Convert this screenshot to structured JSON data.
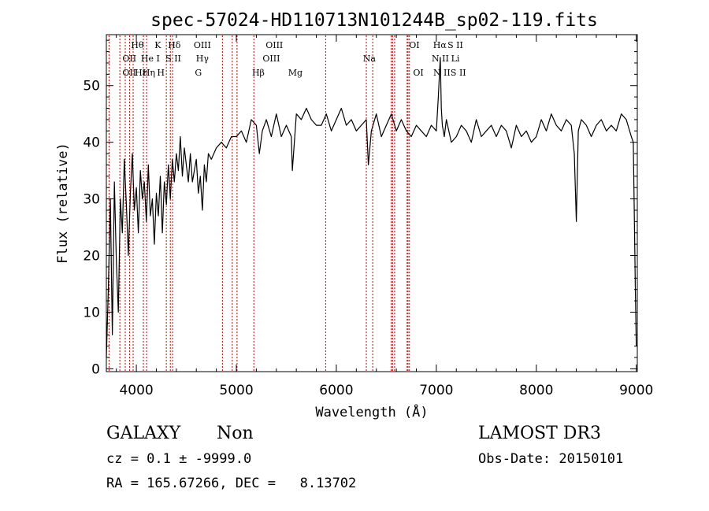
{
  "chart_data": {
    "type": "line",
    "title": "spec-57024-HD110713N101244B_sp02-119.fits",
    "xlabel": "Wavelength (Å)",
    "ylabel": "Flux (relative)",
    "xlim": [
      3700,
      9010
    ],
    "ylim": [
      -0.5,
      59
    ],
    "xticks": [
      4000,
      5000,
      6000,
      7000,
      8000,
      9000
    ],
    "xtick_labels": [
      "4000",
      "5000",
      "6000",
      "7000",
      "8000",
      "9000"
    ],
    "yticks": [
      0,
      10,
      20,
      30,
      40,
      50
    ],
    "ytick_labels": [
      "0",
      "10",
      "20",
      "30",
      "40",
      "50"
    ],
    "grid": false,
    "line_color": "#000000",
    "marker_color": "#cc0000",
    "series": [
      {
        "name": "flux",
        "x": [
          3700,
          3720,
          3740,
          3760,
          3780,
          3800,
          3820,
          3840,
          3860,
          3880,
          3900,
          3920,
          3940,
          3960,
          3980,
          4000,
          4020,
          4040,
          4060,
          4080,
          4100,
          4120,
          4140,
          4160,
          4180,
          4200,
          4220,
          4240,
          4260,
          4280,
          4300,
          4320,
          4340,
          4360,
          4380,
          4400,
          4420,
          4440,
          4460,
          4480,
          4500,
          4520,
          4540,
          4560,
          4580,
          4600,
          4620,
          4640,
          4660,
          4680,
          4700,
          4720,
          4750,
          4800,
          4850,
          4900,
          4950,
          5000,
          5050,
          5100,
          5150,
          5200,
          5230,
          5260,
          5300,
          5350,
          5400,
          5450,
          5500,
          5550,
          5560,
          5600,
          5650,
          5700,
          5750,
          5800,
          5850,
          5900,
          5950,
          6000,
          6050,
          6100,
          6150,
          6200,
          6250,
          6300,
          6320,
          6350,
          6400,
          6450,
          6500,
          6550,
          6600,
          6650,
          6700,
          6750,
          6800,
          6850,
          6900,
          6950,
          7000,
          7020,
          7040,
          7050,
          7060,
          7080,
          7100,
          7150,
          7200,
          7250,
          7300,
          7350,
          7400,
          7450,
          7500,
          7550,
          7600,
          7650,
          7700,
          7750,
          7800,
          7850,
          7900,
          7950,
          8000,
          8050,
          8100,
          8150,
          8200,
          8250,
          8300,
          8350,
          8380,
          8400,
          8420,
          8450,
          8500,
          8550,
          8600,
          8650,
          8700,
          8750,
          8800,
          8850,
          8900,
          8950,
          8970,
          8990,
          9000
        ],
        "y": [
          2,
          14,
          30,
          6,
          33,
          19,
          10,
          30,
          24,
          37,
          29,
          20,
          31,
          38,
          28,
          32,
          24,
          35,
          30,
          33,
          26,
          36,
          27,
          30,
          22,
          31,
          27,
          34,
          24,
          33,
          29,
          36,
          30,
          37,
          33,
          38,
          35,
          41,
          34,
          39,
          36,
          33,
          38,
          33,
          35,
          37,
          31,
          34,
          28,
          36,
          33,
          38,
          37,
          39,
          40,
          39,
          41,
          41,
          42,
          40,
          44,
          43,
          38,
          42,
          44,
          41,
          45,
          41,
          43,
          41,
          35,
          45,
          44,
          46,
          44,
          43,
          43,
          45,
          42,
          44,
          46,
          43,
          44,
          42,
          43,
          44,
          36,
          42,
          45,
          41,
          43,
          45,
          42,
          44,
          42,
          41,
          43,
          42,
          41,
          43,
          42,
          48,
          55,
          46,
          43,
          41,
          44,
          40,
          41,
          43,
          42,
          40,
          44,
          41,
          42,
          43,
          41,
          43,
          42,
          39,
          43,
          41,
          42,
          40,
          41,
          44,
          42,
          45,
          43,
          42,
          44,
          43,
          38,
          26,
          42,
          44,
          43,
          41,
          43,
          44,
          42,
          43,
          42,
          45,
          44,
          41,
          40,
          14,
          4
        ]
      }
    ],
    "lines": [
      {
        "x": 3727,
        "label": "OII"
      },
      {
        "x": 3835,
        "label": "Hη"
      },
      {
        "x": 3889,
        "label": "He I"
      },
      {
        "x": 3933,
        "label": "K"
      },
      {
        "x": 3968,
        "label": "H"
      },
      {
        "x": 4070,
        "label": "S II"
      },
      {
        "x": 4102,
        "label": "Hδ"
      },
      {
        "x": 4300,
        "label": "G"
      },
      {
        "x": 4340,
        "label": "Hγ"
      },
      {
        "x": 4363,
        "label": "OIII"
      },
      {
        "x": 4861,
        "label": "Hβ"
      },
      {
        "x": 4959,
        "label": "OIII"
      },
      {
        "x": 5007,
        "label": "OIII"
      },
      {
        "x": 5175,
        "label": "Mg"
      },
      {
        "x": 5893,
        "label": "Na"
      },
      {
        "x": 6300,
        "label": "OI"
      },
      {
        "x": 6364,
        "label": "OI"
      },
      {
        "x": 6548,
        "label": "N II"
      },
      {
        "x": 6563,
        "label": "Hα"
      },
      {
        "x": 6583,
        "label": "N II"
      },
      {
        "x": 6708,
        "label": "Li"
      },
      {
        "x": 6717,
        "label": "S II"
      },
      {
        "x": 6731,
        "label": "S II"
      }
    ],
    "labels": [
      {
        "text": "Hθ",
        "x": 4010,
        "row": 1
      },
      {
        "text": "K",
        "x": 4215,
        "row": 1
      },
      {
        "text": "Hδ",
        "x": 4380,
        "row": 1
      },
      {
        "text": "OIII",
        "x": 4660,
        "row": 1
      },
      {
        "text": "OIII",
        "x": 5380,
        "row": 1
      },
      {
        "text": "OI",
        "x": 6780,
        "row": 1
      },
      {
        "text": "Hα",
        "x": 7035,
        "row": 1
      },
      {
        "text": "S II",
        "x": 7190,
        "row": 1
      },
      {
        "text": "OII",
        "x": 3930,
        "row": 2
      },
      {
        "text": "He I",
        "x": 4140,
        "row": 2
      },
      {
        "text": "S II",
        "x": 4370,
        "row": 2
      },
      {
        "text": "Hγ",
        "x": 4660,
        "row": 2
      },
      {
        "text": "OIII",
        "x": 5350,
        "row": 2
      },
      {
        "text": "Na",
        "x": 6330,
        "row": 2
      },
      {
        "text": "N II",
        "x": 7040,
        "row": 2
      },
      {
        "text": "Li",
        "x": 7190,
        "row": 2
      },
      {
        "text": "OII",
        "x": 3930,
        "row": 3
      },
      {
        "text": "Hε",
        "x": 4045,
        "row": 3
      },
      {
        "text": "Hη",
        "x": 4125,
        "row": 3
      },
      {
        "text": "H",
        "x": 4245,
        "row": 3
      },
      {
        "text": "G",
        "x": 4620,
        "row": 3
      },
      {
        "text": "Hβ",
        "x": 5220,
        "row": 3
      },
      {
        "text": "Mg",
        "x": 5590,
        "row": 3
      },
      {
        "text": "OI",
        "x": 6820,
        "row": 3
      },
      {
        "text": "N II",
        "x": 7055,
        "row": 3
      },
      {
        "text": "S II",
        "x": 7220,
        "row": 3
      }
    ]
  },
  "footer": {
    "class_label": "GALAXY",
    "subclass_label": "Non",
    "survey": "LAMOST DR3",
    "redshift": "cz = 0.1 ± -9999.0",
    "obs_date": "Obs-Date: 20150101",
    "coords": "RA = 165.67266, DEC =   8.13702"
  }
}
